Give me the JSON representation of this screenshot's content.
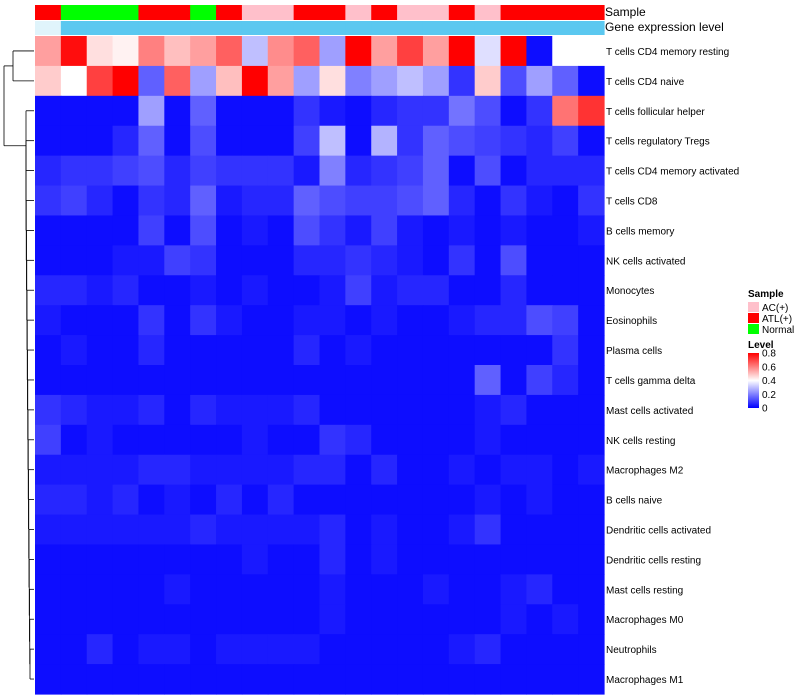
{
  "chart_data": {
    "type": "heatmap",
    "title": "",
    "annotation_tracks": [
      {
        "name": "Sample",
        "values": [
          "ATL(+)",
          "Normal",
          "Normal",
          "Normal",
          "ATL(+)",
          "ATL(+)",
          "Normal",
          "ATL(+)",
          "AC(+)",
          "AC(+)",
          "ATL(+)",
          "ATL(+)",
          "AC(+)",
          "ATL(+)",
          "AC(+)",
          "AC(+)",
          "ATL(+)",
          "AC(+)",
          "ATL(+)",
          "ATL(+)",
          "ATL(+)",
          "ATL(+)"
        ]
      },
      {
        "name": "Gene expression level",
        "values": [
          "low",
          "high",
          "high",
          "high",
          "high",
          "high",
          "high",
          "high",
          "high",
          "high",
          "high",
          "high",
          "high",
          "high",
          "high",
          "high",
          "high",
          "high",
          "high",
          "high",
          "high",
          "high"
        ]
      }
    ],
    "rows": [
      "T cells CD4 memory resting",
      "T cells CD4 naive",
      "T cells follicular helper",
      "T cells regulatory  Tregs",
      "T cells CD4 memory activated",
      "T cells CD8",
      "B cells memory",
      "NK cells activated",
      "Monocytes",
      "Eosinophils",
      "Plasma cells",
      "T cells gamma delta",
      "Mast cells activated",
      "NK cells resting",
      "Macrophages M2",
      "B cells naive",
      "Dendritic cells activated",
      "Dendritic cells resting",
      "Mast cells resting",
      "Macrophages M0",
      "Neutrophils",
      "Macrophages M1"
    ],
    "values": [
      [
        0.55,
        0.78,
        0.45,
        0.42,
        0.6,
        0.5,
        0.55,
        0.65,
        0.3,
        0.58,
        0.65,
        0.25,
        0.8,
        0.55,
        0.7,
        0.55,
        0.8,
        0.35,
        0.8,
        0.02,
        0.4,
        0.4
      ],
      [
        0.48,
        0.4,
        0.7,
        0.8,
        0.15,
        0.65,
        0.25,
        0.5,
        0.8,
        0.55,
        0.25,
        0.45,
        0.2,
        0.25,
        0.3,
        0.25,
        0.08,
        0.48,
        0.12,
        0.25,
        0.15,
        0.02
      ],
      [
        0.02,
        0.02,
        0.02,
        0.02,
        0.25,
        0.02,
        0.15,
        0.02,
        0.02,
        0.02,
        0.08,
        0.04,
        0.02,
        0.06,
        0.08,
        0.08,
        0.18,
        0.12,
        0.02,
        0.08,
        0.62,
        0.72
      ],
      [
        0.02,
        0.02,
        0.02,
        0.06,
        0.15,
        0.02,
        0.12,
        0.02,
        0.02,
        0.02,
        0.1,
        0.3,
        0.02,
        0.28,
        0.08,
        0.15,
        0.12,
        0.1,
        0.08,
        0.06,
        0.1,
        0.02
      ],
      [
        0.06,
        0.08,
        0.08,
        0.1,
        0.12,
        0.06,
        0.1,
        0.08,
        0.08,
        0.08,
        0.04,
        0.2,
        0.06,
        0.08,
        0.1,
        0.15,
        0.02,
        0.12,
        0.02,
        0.06,
        0.06,
        0.06
      ],
      [
        0.08,
        0.1,
        0.06,
        0.02,
        0.08,
        0.06,
        0.15,
        0.04,
        0.06,
        0.06,
        0.15,
        0.12,
        0.1,
        0.1,
        0.12,
        0.15,
        0.06,
        0.02,
        0.08,
        0.04,
        0.02,
        0.08
      ],
      [
        0.02,
        0.02,
        0.02,
        0.02,
        0.1,
        0.02,
        0.12,
        0.02,
        0.04,
        0.02,
        0.12,
        0.08,
        0.04,
        0.1,
        0.04,
        0.02,
        0.04,
        0.02,
        0.04,
        0.02,
        0.02,
        0.04
      ],
      [
        0.02,
        0.02,
        0.02,
        0.04,
        0.04,
        0.1,
        0.08,
        0.02,
        0.02,
        0.02,
        0.06,
        0.06,
        0.08,
        0.06,
        0.04,
        0.02,
        0.08,
        0.02,
        0.12,
        0.02,
        0.02,
        0.02
      ],
      [
        0.06,
        0.06,
        0.04,
        0.06,
        0.02,
        0.02,
        0.04,
        0.02,
        0.04,
        0.02,
        0.02,
        0.04,
        0.1,
        0.04,
        0.06,
        0.06,
        0.02,
        0.02,
        0.06,
        0.02,
        0.02,
        0.02
      ],
      [
        0.04,
        0.02,
        0.02,
        0.02,
        0.08,
        0.02,
        0.08,
        0.04,
        0.02,
        0.02,
        0.04,
        0.04,
        0.02,
        0.04,
        0.02,
        0.02,
        0.04,
        0.06,
        0.06,
        0.12,
        0.1,
        0.02
      ],
      [
        0.02,
        0.04,
        0.02,
        0.02,
        0.06,
        0.02,
        0.02,
        0.02,
        0.02,
        0.02,
        0.06,
        0.02,
        0.04,
        0.02,
        0.02,
        0.02,
        0.02,
        0.02,
        0.02,
        0.02,
        0.08,
        0.02
      ],
      [
        0.02,
        0.02,
        0.02,
        0.02,
        0.02,
        0.02,
        0.02,
        0.02,
        0.02,
        0.02,
        0.02,
        0.02,
        0.02,
        0.02,
        0.02,
        0.02,
        0.02,
        0.15,
        0.02,
        0.1,
        0.06,
        0.02
      ],
      [
        0.08,
        0.06,
        0.04,
        0.04,
        0.06,
        0.02,
        0.06,
        0.04,
        0.04,
        0.04,
        0.06,
        0.02,
        0.02,
        0.02,
        0.02,
        0.02,
        0.02,
        0.04,
        0.06,
        0.02,
        0.02,
        0.02
      ],
      [
        0.1,
        0.02,
        0.04,
        0.02,
        0.02,
        0.02,
        0.02,
        0.02,
        0.04,
        0.02,
        0.02,
        0.08,
        0.06,
        0.02,
        0.02,
        0.02,
        0.02,
        0.04,
        0.02,
        0.02,
        0.02,
        0.02
      ],
      [
        0.04,
        0.04,
        0.04,
        0.04,
        0.06,
        0.06,
        0.04,
        0.04,
        0.04,
        0.04,
        0.06,
        0.06,
        0.02,
        0.06,
        0.02,
        0.02,
        0.04,
        0.02,
        0.04,
        0.04,
        0.02,
        0.04
      ],
      [
        0.06,
        0.06,
        0.04,
        0.06,
        0.02,
        0.04,
        0.02,
        0.06,
        0.02,
        0.06,
        0.02,
        0.02,
        0.02,
        0.02,
        0.02,
        0.02,
        0.02,
        0.04,
        0.02,
        0.04,
        0.02,
        0.02
      ],
      [
        0.04,
        0.04,
        0.04,
        0.04,
        0.04,
        0.04,
        0.06,
        0.04,
        0.04,
        0.04,
        0.04,
        0.06,
        0.02,
        0.04,
        0.02,
        0.02,
        0.04,
        0.08,
        0.02,
        0.02,
        0.02,
        0.02
      ],
      [
        0.02,
        0.02,
        0.02,
        0.02,
        0.02,
        0.02,
        0.02,
        0.02,
        0.04,
        0.02,
        0.02,
        0.06,
        0.02,
        0.04,
        0.02,
        0.02,
        0.02,
        0.02,
        0.02,
        0.02,
        0.02,
        0.02
      ],
      [
        0.02,
        0.02,
        0.02,
        0.02,
        0.02,
        0.04,
        0.02,
        0.02,
        0.02,
        0.02,
        0.02,
        0.04,
        0.02,
        0.02,
        0.02,
        0.04,
        0.02,
        0.02,
        0.04,
        0.06,
        0.02,
        0.02
      ],
      [
        0.02,
        0.02,
        0.02,
        0.02,
        0.02,
        0.02,
        0.02,
        0.02,
        0.02,
        0.02,
        0.02,
        0.04,
        0.02,
        0.02,
        0.02,
        0.02,
        0.02,
        0.02,
        0.04,
        0.02,
        0.04,
        0.02
      ],
      [
        0.02,
        0.02,
        0.06,
        0.02,
        0.04,
        0.04,
        0.02,
        0.04,
        0.04,
        0.04,
        0.04,
        0.02,
        0.02,
        0.02,
        0.02,
        0.02,
        0.04,
        0.06,
        0.02,
        0.02,
        0.02,
        0.02
      ],
      [
        0.02,
        0.02,
        0.02,
        0.02,
        0.02,
        0.02,
        0.02,
        0.02,
        0.02,
        0.02,
        0.02,
        0.02,
        0.02,
        0.02,
        0.02,
        0.02,
        0.02,
        0.02,
        0.02,
        0.02,
        0.02,
        0.02
      ]
    ],
    "colors": {
      "sample": {
        "AC(+)": "#ffc0cb",
        "ATL(+)": "#ff0000",
        "Normal": "#00ff00"
      },
      "expression": {
        "low": "#e0f4fb",
        "high": "#5bc8f0"
      },
      "scale": {
        "low": "#0000ff",
        "mid": "#ffffff",
        "high": "#ff0000"
      }
    },
    "legend": {
      "sample_title": "Sample",
      "sample_items": [
        "AC(+)",
        "ATL(+)",
        "Normal"
      ],
      "level_title": "Level",
      "level_ticks": [
        "0.8",
        "0.6",
        "0.4",
        "0.2",
        "0"
      ],
      "level_min": 0,
      "level_mid": 0.4,
      "level_max": 0.8,
      "placement": "right"
    }
  }
}
